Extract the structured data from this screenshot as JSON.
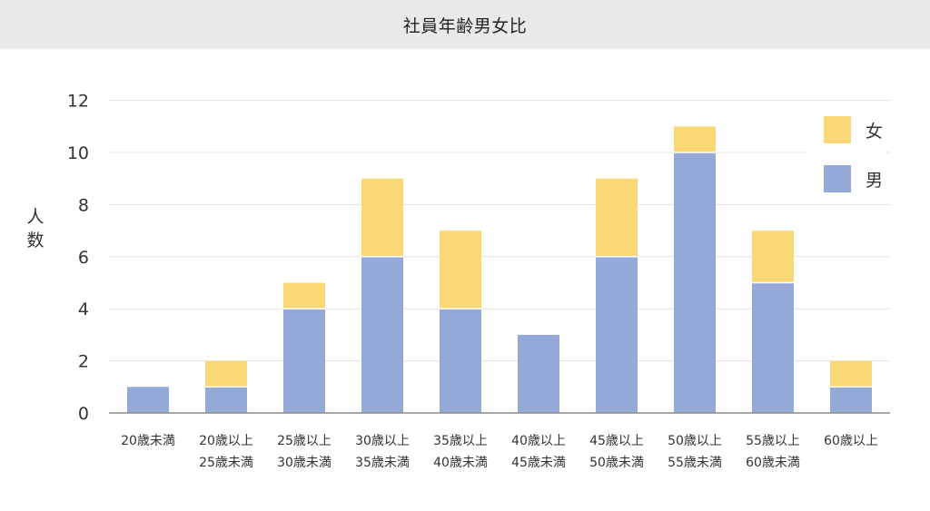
{
  "title": "社員年齢男女比",
  "colors": {
    "male": "#95a9d9",
    "female": "#fad877",
    "grid": "#e3e3e3",
    "axis": "#8a8a8a"
  },
  "legend": {
    "female_label": "女",
    "male_label": "男"
  },
  "chart_data": {
    "type": "bar",
    "stacked": true,
    "title": "社員年齢男女比",
    "ylabel": "人数",
    "xlabel": "",
    "ylim": [
      0,
      12
    ],
    "yticks": [
      0,
      2,
      4,
      6,
      8,
      10,
      12
    ],
    "grid": true,
    "legend_position": "top-right",
    "categories": [
      [
        "20歳未満"
      ],
      [
        "20歳以上",
        "25歳未満"
      ],
      [
        "25歳以上",
        "30歳未満"
      ],
      [
        "30歳以上",
        "35歳未満"
      ],
      [
        "35歳以上",
        "40歳未満"
      ],
      [
        "40歳以上",
        "45歳未満"
      ],
      [
        "45歳以上",
        "50歳未満"
      ],
      [
        "50歳以上",
        "55歳未満"
      ],
      [
        "55歳以上",
        "60歳未満"
      ],
      [
        "60歳以上"
      ]
    ],
    "series": [
      {
        "name": "男",
        "color": "#95a9d9",
        "values": [
          1,
          1,
          4,
          6,
          4,
          3,
          6,
          10,
          5,
          1
        ]
      },
      {
        "name": "女",
        "color": "#fad877",
        "values": [
          0,
          1,
          1,
          3,
          3,
          0,
          3,
          1,
          2,
          1
        ]
      }
    ]
  }
}
